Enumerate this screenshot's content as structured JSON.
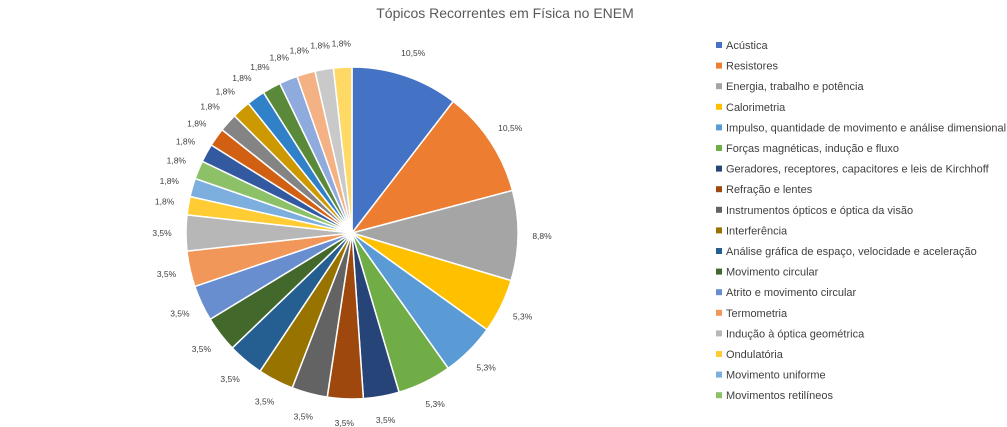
{
  "chart_data": {
    "type": "pie",
    "title": "Tópicos Recorrentes em Física no ENEM",
    "legend_position": "right",
    "slices": [
      {
        "label": "Acústica",
        "value": 10.5,
        "display": "10,5%",
        "color": "#4472C4"
      },
      {
        "label": "Resistores",
        "value": 10.5,
        "display": "10,5%",
        "color": "#ED7D31"
      },
      {
        "label": "Energia, trabalho e potência",
        "value": 8.8,
        "display": "8,8%",
        "color": "#A5A5A5"
      },
      {
        "label": "Calorimetria",
        "value": 5.3,
        "display": "5,3%",
        "color": "#FFC000"
      },
      {
        "label": "Impulso, quantidade de movimento e análise dimensional",
        "value": 5.3,
        "display": "5,3%",
        "color": "#5B9BD5"
      },
      {
        "label": "Forças magnéticas, indução e fluxo",
        "value": 5.3,
        "display": "5,3%",
        "color": "#70AD47"
      },
      {
        "label": "Geradores, receptores, capacitores e leis de Kirchhoff",
        "value": 3.5,
        "display": "3,5%",
        "color": "#264478"
      },
      {
        "label": "Refração e lentes",
        "value": 3.5,
        "display": "3,5%",
        "color": "#9E480E"
      },
      {
        "label": "Instrumentos ópticos e óptica da visão",
        "value": 3.5,
        "display": "3,5%",
        "color": "#636363"
      },
      {
        "label": "Interferência",
        "value": 3.5,
        "display": "3,5%",
        "color": "#997300"
      },
      {
        "label": "Análise gráfica de espaço, velocidade e aceleração",
        "value": 3.5,
        "display": "3,5%",
        "color": "#255E91"
      },
      {
        "label": "Movimento circular",
        "value": 3.5,
        "display": "3,5%",
        "color": "#43682B"
      },
      {
        "label": "Atrito e movimento circular",
        "value": 3.5,
        "display": "3,5%",
        "color": "#698ED0"
      },
      {
        "label": "Termometria",
        "value": 3.5,
        "display": "3,5%",
        "color": "#F1975A"
      },
      {
        "label": "Indução à óptica geométrica",
        "value": 3.5,
        "display": "3,5%",
        "color": "#B7B7B7"
      },
      {
        "label": "Ondulatória",
        "value": 1.8,
        "display": "1,8%",
        "color": "#FFCD33"
      },
      {
        "label": "Movimento uniforme",
        "value": 1.8,
        "display": "1,8%",
        "color": "#7CAFDD"
      },
      {
        "label": "Movimentos retilíneos",
        "value": 1.8,
        "display": "1,8%",
        "color": "#8CC168"
      },
      {
        "label": "",
        "value": 1.8,
        "display": "1,8%",
        "color": "#335AA1"
      },
      {
        "label": "",
        "value": 1.8,
        "display": "1,8%",
        "color": "#D26012"
      },
      {
        "label": "",
        "value": 1.8,
        "display": "1,8%",
        "color": "#848484"
      },
      {
        "label": "",
        "value": 1.8,
        "display": "1,8%",
        "color": "#CC9A00"
      },
      {
        "label": "",
        "value": 1.8,
        "display": "1,8%",
        "color": "#3181C8"
      },
      {
        "label": "",
        "value": 1.8,
        "display": "1,8%",
        "color": "#5A8A39"
      },
      {
        "label": "",
        "value": 1.8,
        "display": "1,8%",
        "color": "#8FAADC"
      },
      {
        "label": "",
        "value": 1.8,
        "display": "1,8%",
        "color": "#F4B183"
      },
      {
        "label": "",
        "value": 1.8,
        "display": "1,8%",
        "color": "#C9C9C9"
      },
      {
        "label": "",
        "value": 1.8,
        "display": "1,8%",
        "color": "#FFD966"
      }
    ]
  }
}
